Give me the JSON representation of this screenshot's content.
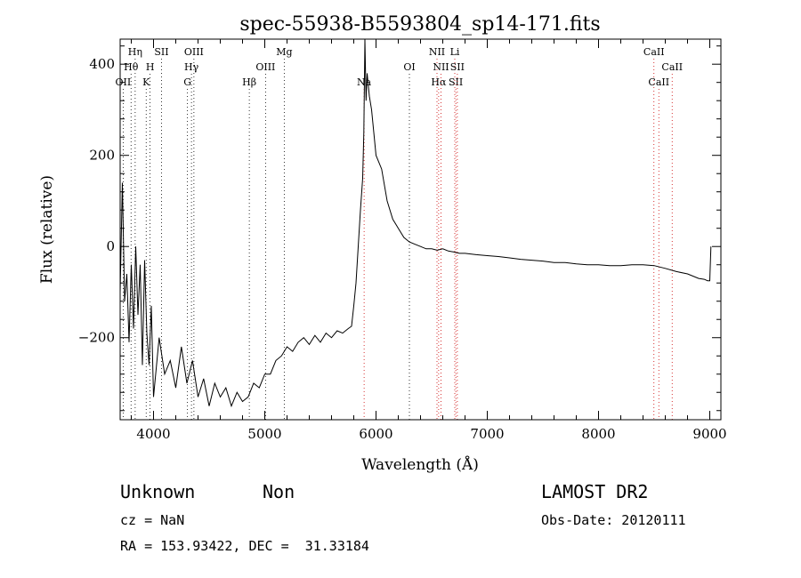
{
  "chart_data": {
    "type": "line",
    "title": "spec-55938-B5593804_sp14-171.fits",
    "xlabel": "Wavelength (Å)",
    "ylabel": "Flux (relative)",
    "xlim": [
      3700,
      9100
    ],
    "ylim": [
      -380,
      455
    ],
    "x_ticks": [
      4000,
      5000,
      6000,
      7000,
      8000,
      9000
    ],
    "y_ticks": [
      -200,
      0,
      200,
      400
    ],
    "grid": false,
    "line_marks": [
      {
        "label": "OII",
        "wavelength": 3727,
        "row": 3,
        "color": "#000000"
      },
      {
        "label": "Hθ",
        "wavelength": 3798,
        "row": 2,
        "color": "#000000"
      },
      {
        "label": "Hη",
        "wavelength": 3835,
        "row": 1,
        "color": "#000000"
      },
      {
        "label": "K",
        "wavelength": 3934,
        "row": 3,
        "color": "#000000"
      },
      {
        "label": "H",
        "wavelength": 3969,
        "row": 2,
        "color": "#000000"
      },
      {
        "label": "SII",
        "wavelength": 4072,
        "row": 1,
        "color": "#000000"
      },
      {
        "label": "G",
        "wavelength": 4305,
        "row": 3,
        "color": "#000000"
      },
      {
        "label": "Hγ",
        "wavelength": 4341,
        "row": 2,
        "color": "#000000"
      },
      {
        "label": "OIII",
        "wavelength": 4363,
        "row": 1,
        "color": "#000000"
      },
      {
        "label": "Hβ",
        "wavelength": 4861,
        "row": 3,
        "color": "#000000"
      },
      {
        "label": "OIII",
        "wavelength": 5007,
        "row": 2,
        "color": "#000000"
      },
      {
        "label": "Mg",
        "wavelength": 5175,
        "row": 1,
        "color": "#000000"
      },
      {
        "label": "Na",
        "wavelength": 5893,
        "row": 3,
        "color": "#cc0000"
      },
      {
        "label": "OI",
        "wavelength": 6300,
        "row": 2,
        "color": "#000000"
      },
      {
        "label": "NII",
        "wavelength": 6548,
        "row": 1,
        "color": "#cc0000"
      },
      {
        "label": "Hα",
        "wavelength": 6563,
        "row": 3,
        "color": "#cc0000"
      },
      {
        "label": "NII",
        "wavelength": 6584,
        "row": 2,
        "color": "#cc0000"
      },
      {
        "label": "Li",
        "wavelength": 6708,
        "row": 1,
        "color": "#cc0000"
      },
      {
        "label": "SII",
        "wavelength": 6717,
        "row": 3,
        "color": "#cc0000"
      },
      {
        "label": "SII",
        "wavelength": 6731,
        "row": 2,
        "color": "#cc0000"
      },
      {
        "label": "CaII",
        "wavelength": 8498,
        "row": 1,
        "color": "#cc0000"
      },
      {
        "label": "CaII",
        "wavelength": 8542,
        "row": 3,
        "color": "#cc0000"
      },
      {
        "label": "CaII",
        "wavelength": 8662,
        "row": 2,
        "color": "#cc0000"
      }
    ],
    "series": [
      {
        "x": [
          3700,
          3720,
          3740,
          3760,
          3780,
          3800,
          3820,
          3840,
          3860,
          3880,
          3900,
          3920,
          3940,
          3960,
          3980,
          4000,
          4050,
          4100,
          4150,
          4200,
          4250,
          4300,
          4350,
          4400,
          4450,
          4500,
          4550,
          4600,
          4650,
          4700,
          4750,
          4800,
          4850,
          4900,
          4950,
          5000,
          5050,
          5100,
          5150,
          5200,
          5250,
          5300,
          5350,
          5400,
          5450,
          5500,
          5550,
          5600,
          5650,
          5700,
          5750,
          5780,
          5800,
          5820,
          5840,
          5860,
          5880,
          5890,
          5900,
          5910,
          5920,
          5940,
          5960,
          5980,
          6000,
          6050,
          6100,
          6150,
          6200,
          6250,
          6300,
          6350,
          6400,
          6450,
          6500,
          6550,
          6600,
          6650,
          6700,
          6750,
          6800,
          6900,
          7000,
          7100,
          7200,
          7300,
          7400,
          7500,
          7600,
          7700,
          7800,
          7900,
          8000,
          8100,
          8200,
          8300,
          8400,
          8500,
          8600,
          8700,
          8800,
          8900,
          8950,
          8980,
          9000,
          9010
        ],
        "y": [
          -100,
          140,
          -120,
          -60,
          -210,
          -40,
          -180,
          0,
          -150,
          -40,
          -260,
          -30,
          -190,
          -260,
          -130,
          -330,
          -200,
          -280,
          -250,
          -310,
          -220,
          -300,
          -250,
          -330,
          -290,
          -350,
          -300,
          -330,
          -310,
          -350,
          -320,
          -340,
          -330,
          -300,
          -310,
          -280,
          -280,
          -250,
          -240,
          -220,
          -230,
          -210,
          -200,
          -215,
          -195,
          -210,
          -190,
          -200,
          -185,
          -190,
          -180,
          -175,
          -130,
          -80,
          0,
          80,
          150,
          250,
          455,
          320,
          380,
          330,
          300,
          250,
          200,
          170,
          100,
          60,
          40,
          20,
          10,
          5,
          0,
          -5,
          -5,
          -8,
          -5,
          -10,
          -12,
          -15,
          -15,
          -18,
          -20,
          -22,
          -25,
          -28,
          -30,
          -32,
          -35,
          -35,
          -38,
          -40,
          -40,
          -42,
          -42,
          -40,
          -40,
          -42,
          -48,
          -55,
          -60,
          -70,
          -72,
          -75,
          -75,
          0
        ]
      }
    ]
  },
  "info": {
    "class": "Unknown",
    "subclass": "Non",
    "survey": "LAMOST DR2",
    "cz": "cz = NaN",
    "obs_date": "Obs-Date: 20120111",
    "coords": "RA = 153.93422, DEC =  31.33184"
  }
}
